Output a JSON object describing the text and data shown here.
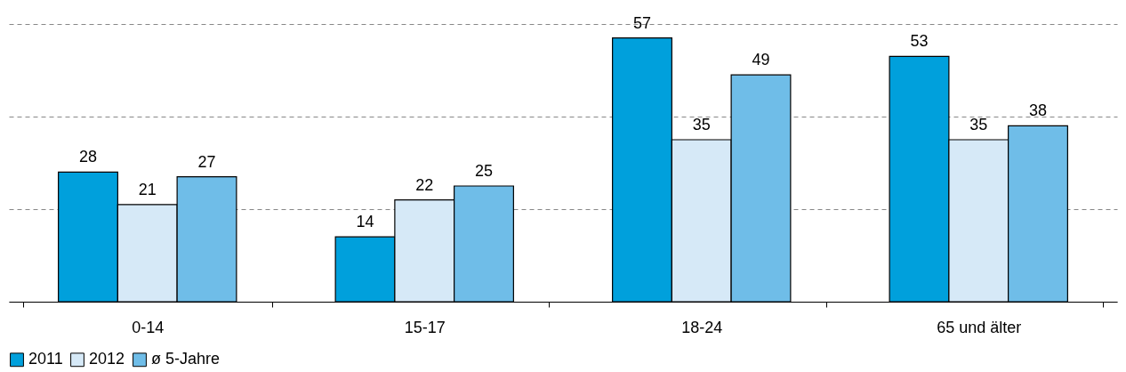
{
  "chart_data": {
    "type": "bar",
    "categories": [
      "0-14",
      "15-17",
      "18-24",
      "65 und älter"
    ],
    "series": [
      {
        "name": "2011",
        "color": "#00a0dc",
        "values": [
          28,
          14,
          57,
          53
        ]
      },
      {
        "name": "2012",
        "color": "#d6e9f7",
        "values": [
          21,
          22,
          35,
          35
        ]
      },
      {
        "name": "ø 5-Jahre",
        "color": "#6fbde8",
        "values": [
          27,
          25,
          49,
          38
        ]
      }
    ],
    "ylim": [
      0,
      60
    ],
    "yticks": [
      {
        "value": 0,
        "label": null
      },
      {
        "value": 20,
        "label": null
      },
      {
        "value": 40,
        "label": null
      },
      {
        "value": 60,
        "label": null
      }
    ],
    "tick_labels": "x",
    "grid": "y",
    "legend": "bottom",
    "data_labels": true
  }
}
